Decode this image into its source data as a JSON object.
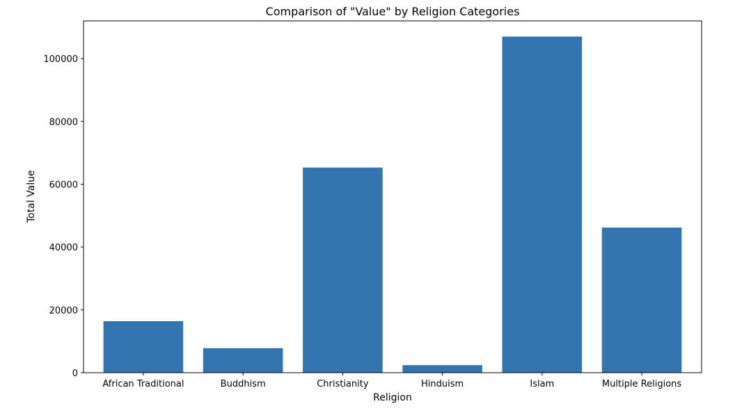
{
  "chart_data": {
    "type": "bar",
    "title": "Comparison of \"Value\" by Religion Categories",
    "xlabel": "Religion",
    "ylabel": "Total Value",
    "categories": [
      "African Traditional",
      "Buddhism",
      "Christianity",
      "Hinduism",
      "Islam",
      "Multiple Religions"
    ],
    "values": [
      16400,
      7800,
      65300,
      2400,
      107000,
      46200
    ],
    "ylim": [
      0,
      112000
    ],
    "yticks": [
      0,
      20000,
      40000,
      60000,
      80000,
      100000
    ],
    "ytick_labels": [
      "0",
      "20000",
      "40000",
      "60000",
      "80000",
      "100000"
    ],
    "bar_color": "#3274b0",
    "grid": false,
    "legend": "none"
  }
}
